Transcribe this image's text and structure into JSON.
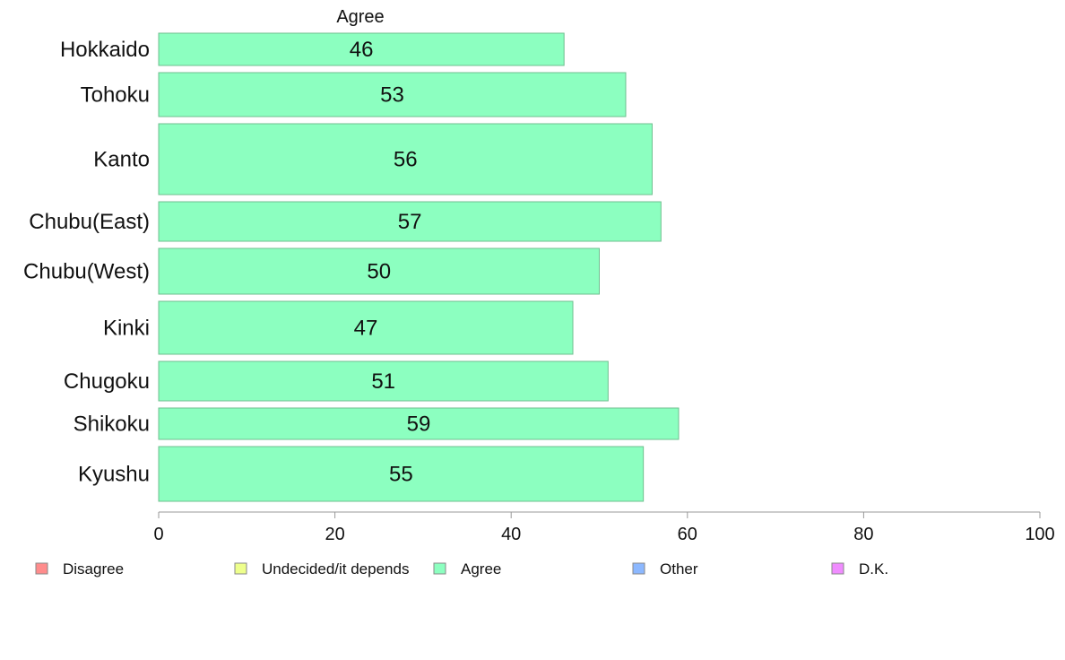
{
  "chart_data": {
    "type": "bar",
    "orientation": "horizontal",
    "title": "Agree",
    "categories": [
      "Hokkaido",
      "Tohoku",
      "Kanto",
      "Chubu(East)",
      "Chubu(West)",
      "Kinki",
      "Chugoku",
      "Shikoku",
      "Kyushu"
    ],
    "values": [
      46,
      53,
      56,
      57,
      50,
      47,
      51,
      59,
      55
    ],
    "xlim": [
      0,
      100
    ],
    "xticks": [
      0,
      20,
      40,
      60,
      80,
      100
    ],
    "grid": false,
    "bar_color": "#8cffc0",
    "legend": {
      "placement": "bottom",
      "items": [
        {
          "label": "Disagree",
          "color": "#ff8c8c"
        },
        {
          "label": "Undecided/it depends",
          "color": "#eeff8c"
        },
        {
          "label": "Agree",
          "color": "#8cffc0"
        },
        {
          "label": "Other",
          "color": "#8cb8ff"
        },
        {
          "label": "D.K.",
          "color": "#f08cff"
        }
      ]
    }
  }
}
